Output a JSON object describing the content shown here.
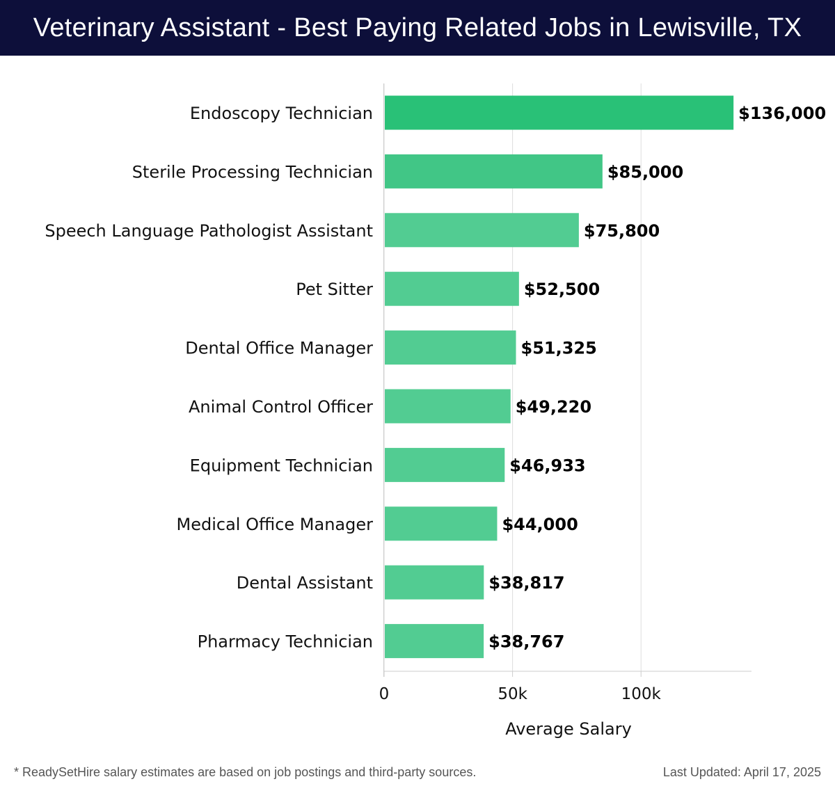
{
  "header": {
    "title": "Veterinary Assistant - Best Paying Related Jobs in Lewisville, TX"
  },
  "chart_data": {
    "type": "bar",
    "orientation": "horizontal",
    "title": "Veterinary Assistant - Best Paying Related Jobs in Lewisville, TX",
    "xlabel": "Average Salary",
    "ylabel": "",
    "xlim": [
      0,
      143000
    ],
    "x_ticks": [
      0,
      50000,
      100000
    ],
    "x_tick_labels": [
      "0",
      "50k",
      "100k"
    ],
    "grid": true,
    "categories": [
      "Endoscopy Technician",
      "Sterile Processing Technician",
      "Speech Language Pathologist Assistant",
      "Pet Sitter",
      "Dental Office Manager",
      "Animal Control Officer",
      "Equipment Technician",
      "Medical Office Manager",
      "Dental Assistant",
      "Pharmacy Technician"
    ],
    "values": [
      136000,
      85000,
      75800,
      52500,
      51325,
      49220,
      46933,
      44000,
      38817,
      38767
    ],
    "value_labels": [
      "$136,000",
      "$85,000",
      "$75,800",
      "$52,500",
      "$51,325",
      "$49,220",
      "$46,933",
      "$44,000",
      "$38,817",
      "$38,767"
    ],
    "colors": {
      "bar_top": "#29c177",
      "bar_second": "#41c686",
      "bar_rest": "#52cc92",
      "grid": "#dddddd"
    }
  },
  "footer": {
    "note": "* ReadySetHire salary estimates are based on job postings and third-party sources.",
    "updated": "Last Updated: April 17, 2025"
  }
}
